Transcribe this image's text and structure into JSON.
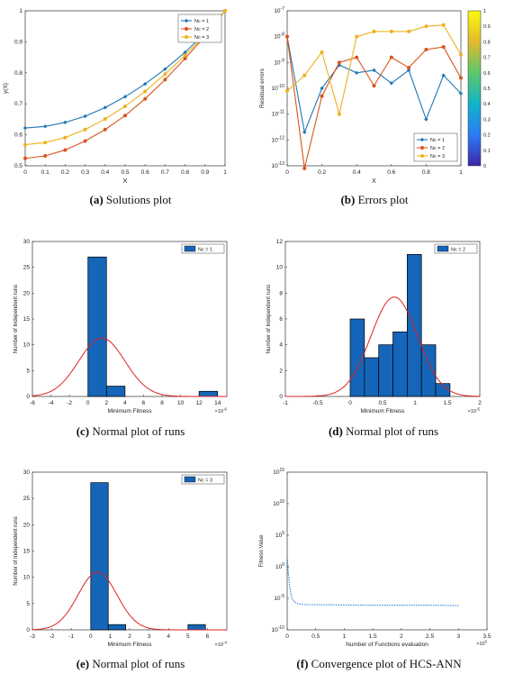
{
  "captions": [
    {
      "letter": "(a)",
      "text": "Solutions plot"
    },
    {
      "letter": "(b)",
      "text": "Errors plot"
    },
    {
      "letter": "(c)",
      "text": "Normal plot of runs"
    },
    {
      "letter": "(d)",
      "text": "Normal plot of runs"
    },
    {
      "letter": "(e)",
      "text": "Normal plot of runs"
    },
    {
      "letter": "(f)",
      "text": "Convergence plot of HCS-ANN"
    }
  ],
  "colors": {
    "nc1": "#1f77b4",
    "nc2": "#d9541a",
    "nc3": "#edb120",
    "bar": "#1565b8",
    "normal": "#e02020",
    "conv": "#2a7fd6"
  },
  "chart_data": [
    {
      "type": "line",
      "panel": "a",
      "xlabel": "X",
      "ylabel": "y(X)",
      "xlim": [
        0,
        1
      ],
      "ylim": [
        0.5,
        1.0
      ],
      "xticks": [
        "0",
        "0.1",
        "0.2",
        "0.3",
        "0.4",
        "0.5",
        "0.6",
        "0.7",
        "0.8",
        "0.9",
        "1"
      ],
      "yticks": [
        "0.5",
        "0.6",
        "0.7",
        "0.8",
        "0.9",
        "1"
      ],
      "legend_position": "top-right",
      "x": [
        0,
        0.1,
        0.2,
        0.3,
        0.4,
        0.5,
        0.6,
        0.7,
        0.8,
        0.9,
        1.0
      ],
      "series": [
        {
          "name": "Nc = 1",
          "values": [
            0.622,
            0.627,
            0.64,
            0.66,
            0.688,
            0.723,
            0.764,
            0.812,
            0.866,
            0.929,
            1.0
          ]
        },
        {
          "name": "Nc = 2",
          "values": [
            0.524,
            0.532,
            0.551,
            0.58,
            0.617,
            0.662,
            0.716,
            0.778,
            0.846,
            0.919,
            1.0
          ]
        },
        {
          "name": "Nc = 3",
          "values": [
            0.568,
            0.575,
            0.591,
            0.617,
            0.651,
            0.692,
            0.74,
            0.796,
            0.856,
            0.923,
            1.0
          ]
        }
      ]
    },
    {
      "type": "line",
      "panel": "b",
      "xlabel": "X",
      "ylabel": "Residual errors",
      "xlim": [
        0,
        1
      ],
      "ylim": [
        -13,
        -7
      ],
      "yscale": "log",
      "xticks": [
        "0",
        "0.2",
        "0.4",
        "0.6",
        "0.8",
        "1"
      ],
      "yticks": [
        {
          "base": "10",
          "exp": "-7",
          "value": -7
        },
        {
          "base": "10",
          "exp": "-8",
          "value": -8
        },
        {
          "base": "10",
          "exp": "-9",
          "value": -9
        },
        {
          "base": "10",
          "exp": "-10",
          "value": -10
        },
        {
          "base": "10",
          "exp": "-11",
          "value": -11
        },
        {
          "base": "10",
          "exp": "-12",
          "value": -12
        },
        {
          "base": "10",
          "exp": "-13",
          "value": -13
        }
      ],
      "legend_position": "bottom-right",
      "colorbar": {
        "ticks": [
          "0",
          "0.1",
          "0.2",
          "0.3",
          "0.4",
          "0.5",
          "0.6",
          "0.7",
          "0.8",
          "0.9",
          "1"
        ]
      },
      "x": [
        0,
        0.1,
        0.2,
        0.3,
        0.4,
        0.5,
        0.6,
        0.7,
        0.8,
        0.9,
        1.0
      ],
      "series": [
        {
          "name": "Nc = 1",
          "log_values": [
            -8.0,
            -11.7,
            -10.0,
            -9.1,
            -9.4,
            -9.3,
            -9.8,
            -9.3,
            -11.2,
            -9.5,
            -10.2
          ]
        },
        {
          "name": "Nc = 2",
          "log_values": [
            -8.0,
            -13.1,
            -10.3,
            -9.0,
            -8.8,
            -9.9,
            -8.8,
            -9.2,
            -8.5,
            -8.4,
            -9.6
          ]
        },
        {
          "name": "Nc = 3",
          "log_values": [
            -10.1,
            -9.5,
            -8.6,
            -11.0,
            -8.0,
            -7.8,
            -7.8,
            -7.8,
            -7.6,
            -7.55,
            -8.7
          ]
        }
      ]
    },
    {
      "type": "bar",
      "panel": "c",
      "xlabel": "Minimum Fitness",
      "ylabel": "Number of Independent runs",
      "xlim": [
        -6,
        15
      ],
      "ylim": [
        0,
        30
      ],
      "x_exponent": "×10",
      "x_exponent_power": "-6",
      "xticks": [
        "-6",
        "-4",
        "-2",
        "0",
        "2",
        "4",
        "6",
        "8",
        "10",
        "12",
        "14"
      ],
      "yticks": [
        "0",
        "5",
        "10",
        "15",
        "20",
        "25",
        "30"
      ],
      "legend_position": "top-right",
      "legend": "Nc = 1",
      "bins": [
        {
          "x0": 0,
          "x1": 2,
          "count": 27
        },
        {
          "x0": 2,
          "x1": 4,
          "count": 2
        },
        {
          "x0": 12,
          "x1": 14,
          "count": 1
        }
      ],
      "normal_fit": {
        "mu": 1.5,
        "sigma": 2.5,
        "peak": 11.3
      }
    },
    {
      "type": "bar",
      "panel": "d",
      "xlabel": "Minimum Fitness",
      "ylabel": "Number of Independent runs",
      "xlim": [
        -1,
        2
      ],
      "ylim": [
        0,
        12
      ],
      "x_exponent": "×10",
      "x_exponent_power": "-5",
      "xticks": [
        "-1",
        "-0.5",
        "0",
        "0.5",
        "1",
        "1.5",
        "2"
      ],
      "yticks": [
        "0",
        "2",
        "4",
        "6",
        "8",
        "10",
        "12"
      ],
      "legend_position": "top-right",
      "legend": "Nc = 2",
      "bins": [
        {
          "x0": 0,
          "x1": 0.22,
          "count": 6
        },
        {
          "x0": 0.22,
          "x1": 0.44,
          "count": 3
        },
        {
          "x0": 0.44,
          "x1": 0.66,
          "count": 4
        },
        {
          "x0": 0.66,
          "x1": 0.88,
          "count": 5
        },
        {
          "x0": 0.88,
          "x1": 1.1,
          "count": 11
        },
        {
          "x0": 1.1,
          "x1": 1.32,
          "count": 4
        },
        {
          "x0": 1.32,
          "x1": 1.54,
          "count": 1
        }
      ],
      "normal_fit": {
        "mu": 0.68,
        "sigma": 0.36,
        "peak": 7.7
      }
    },
    {
      "type": "bar",
      "panel": "e",
      "xlabel": "Minimum Fitness",
      "ylabel": "Number of Independent runs",
      "xlim": [
        -3,
        7
      ],
      "ylim": [
        0,
        30
      ],
      "x_exponent": "×10",
      "x_exponent_power": "-4",
      "xticks": [
        "-3",
        "-2",
        "-1",
        "0",
        "1",
        "2",
        "3",
        "4",
        "5",
        "6"
      ],
      "yticks": [
        "0",
        "5",
        "10",
        "15",
        "20",
        "25",
        "30"
      ],
      "legend_position": "top-right",
      "legend": "Nc = 3",
      "bins": [
        {
          "x0": 0,
          "x1": 0.9,
          "count": 28
        },
        {
          "x0": 0.9,
          "x1": 1.8,
          "count": 1
        },
        {
          "x0": 5,
          "x1": 5.9,
          "count": 1
        }
      ],
      "normal_fit": {
        "mu": 0.35,
        "sigma": 1.0,
        "peak": 11.0
      }
    },
    {
      "type": "line",
      "panel": "f",
      "xlabel": "Number of Functions evaluation",
      "ylabel": "Fitness Value",
      "xlim": [
        0,
        3.5
      ],
      "ylim": [
        -10,
        15
      ],
      "yscale": "log",
      "x_exponent": "×10",
      "x_exponent_power": "5",
      "xticks": [
        "0",
        "0.5",
        "1",
        "1.5",
        "2",
        "2.5",
        "3",
        "3.5"
      ],
      "yticks": [
        {
          "base": "10",
          "exp": "15",
          "value": 15
        },
        {
          "base": "10",
          "exp": "10",
          "value": 10
        },
        {
          "base": "10",
          "exp": "5",
          "value": 5
        },
        {
          "base": "10",
          "exp": "0",
          "value": 0
        },
        {
          "base": "10",
          "exp": "-5",
          "value": -5
        },
        {
          "base": "10",
          "exp": "-10",
          "value": -10
        }
      ],
      "x": [
        0,
        0.01,
        0.02,
        0.04,
        0.07,
        0.1,
        0.15,
        0.2,
        0.3,
        0.5,
        1.0,
        1.5,
        2.0,
        2.5,
        3.0
      ],
      "log_values": [
        1.5,
        0.5,
        -1.0,
        -2.8,
        -4.5,
        -5.3,
        -5.7,
        -5.9,
        -6.0,
        -6.0,
        -6.05,
        -6.1,
        -6.1,
        -6.1,
        -6.15
      ]
    }
  ]
}
